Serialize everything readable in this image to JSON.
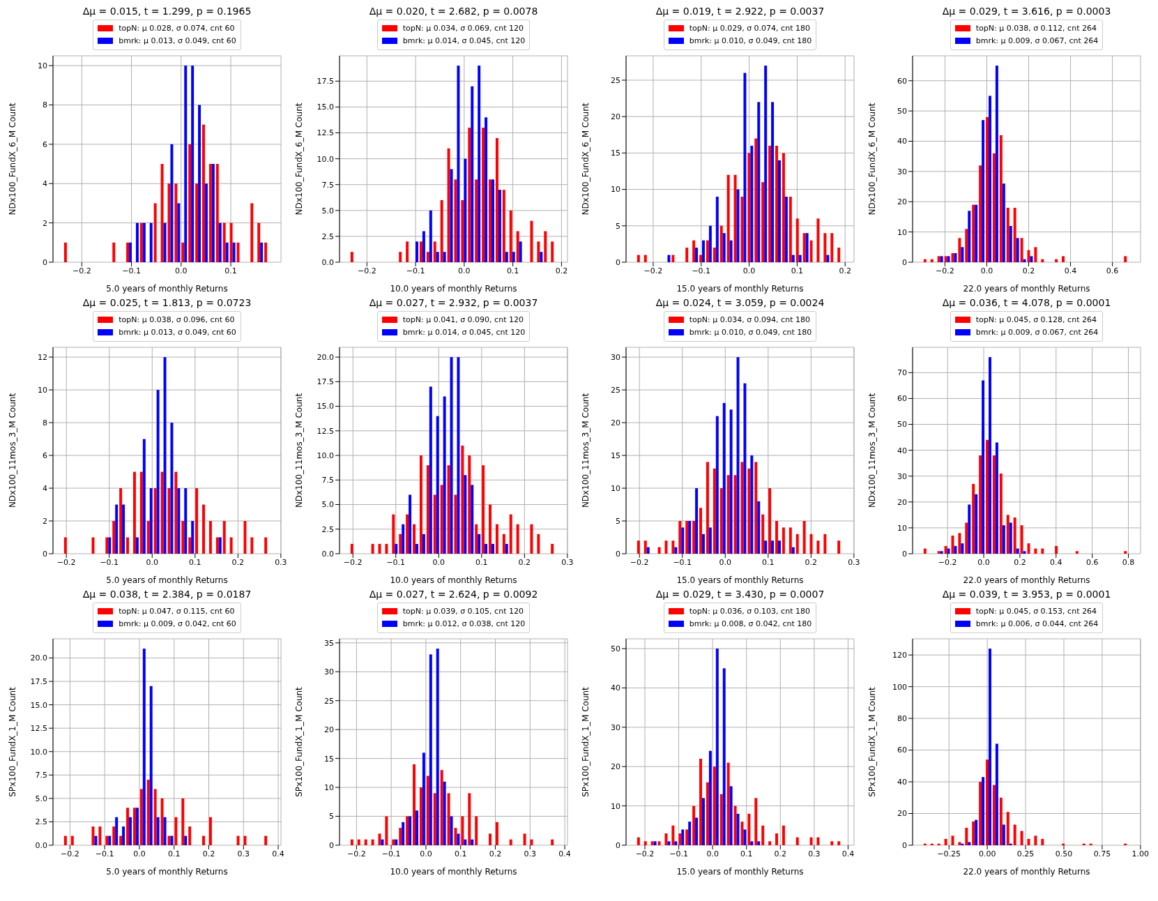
{
  "chart_data": [
    {
      "type": "histogram",
      "title": "Δμ = 0.015,  t = 1.299,  p = 0.1965",
      "xlabel": "5.0 years of monthly Returns",
      "ylabel": "NDx100_FundX_6_M Count",
      "bins": [
        -0.237,
        -0.2231,
        -0.2092,
        -0.1953,
        -0.1814,
        -0.1675,
        -0.1536,
        -0.1397,
        -0.1258,
        -0.1119,
        -0.098,
        -0.0841,
        -0.0702,
        -0.0563,
        -0.0424,
        -0.0285,
        -0.0146,
        -0.0007,
        0.0132,
        0.0271,
        0.041,
        0.0549,
        0.0688,
        0.0827,
        0.0966,
        0.1105,
        0.1244,
        0.1383,
        0.1522,
        0.1661,
        0.18
      ],
      "series": [
        {
          "name": "topN:  μ 0.028,  σ 0.074,  cnt 60",
          "color": "#ff0000",
          "values": [
            1,
            0,
            0,
            0,
            0,
            0,
            0,
            1,
            0,
            1,
            0,
            2,
            0,
            3,
            5,
            4,
            4,
            1,
            6,
            4,
            7,
            5,
            5,
            2,
            2,
            1,
            0,
            3,
            2,
            1
          ]
        },
        {
          "name": "bmrk:  μ 0.013,  σ 0.049,  cnt 60",
          "color": "#0000ff",
          "values": [
            0,
            0,
            0,
            0,
            0,
            0,
            0,
            0,
            0,
            1,
            2,
            2,
            2,
            0,
            2,
            6,
            3,
            10,
            10,
            8,
            4,
            5,
            2,
            1,
            1,
            0,
            0,
            0,
            1,
            0
          ]
        }
      ],
      "xlim": [
        -0.258,
        0.201
      ],
      "xticks": [
        -0.2,
        -0.1,
        {
          "value": 0,
          "label": "0.0"
        },
        0.1
      ],
      "ylim": [
        0,
        10.5
      ],
      "yticks": [
        0,
        2,
        4,
        6,
        8,
        10
      ],
      "grid": true,
      "legend": "top"
    },
    {
      "type": "histogram",
      "title": "Δμ = 0.020,  t = 2.682,  p = 0.0078",
      "xlabel": "10.0 years of monthly Returns",
      "ylabel": "NDx100_FundX_6_M Count",
      "bins": [
        -0.235,
        -0.2208,
        -0.2066,
        -0.1924,
        -0.1782,
        -0.164,
        -0.1498,
        -0.1356,
        -0.1214,
        -0.1072,
        -0.093,
        -0.0788,
        -0.0646,
        -0.0504,
        -0.0362,
        -0.022,
        -0.0078,
        0.0064,
        0.0206,
        0.0348,
        0.049,
        0.0632,
        0.0774,
        0.0916,
        0.1058,
        0.12,
        0.1342,
        0.1484,
        0.1626,
        0.1768,
        0.191
      ],
      "series": [
        {
          "name": "topN:  μ 0.034,  σ 0.069,  cnt 120",
          "color": "#ff0000",
          "values": [
            1,
            0,
            0,
            0,
            0,
            0,
            0,
            1,
            2,
            0,
            2,
            1,
            2,
            6,
            11,
            8,
            6,
            13,
            8,
            13,
            8,
            12,
            7,
            5,
            3,
            0,
            4,
            2,
            3,
            2
          ]
        },
        {
          "name": "bmrk:  μ 0.014,  σ 0.045,  cnt 120",
          "color": "#0000ff",
          "values": [
            0,
            0,
            0,
            0,
            0,
            0,
            0,
            0,
            0,
            2,
            3,
            5,
            1,
            1,
            9,
            19,
            10,
            17,
            19,
            14,
            8,
            7,
            1,
            1,
            2,
            0,
            0,
            1,
            0,
            0
          ]
        }
      ],
      "xlim": [
        -0.2563,
        0.2123
      ],
      "xticks": [
        -0.2,
        -0.1,
        {
          "value": 0,
          "label": "0.0"
        },
        0.1,
        0.2
      ],
      "ylim": [
        0,
        19.95
      ],
      "yticks": [
        {
          "value": 0,
          "label": "0.0"
        },
        {
          "value": 2.5,
          "label": "2.5"
        },
        {
          "value": 5,
          "label": "5.0"
        },
        {
          "value": 7.5,
          "label": "7.5"
        },
        {
          "value": 10,
          "label": "10.0"
        },
        {
          "value": 12.5,
          "label": "12.5"
        },
        {
          "value": 15,
          "label": "15.0"
        },
        {
          "value": 17.5,
          "label": "17.5"
        }
      ],
      "grid": true,
      "legend": "top"
    },
    {
      "type": "histogram",
      "title": "Δμ = 0.019,  t = 2.922,  p = 0.0037",
      "xlabel": "15.0 years of monthly Returns",
      "ylabel": "NDx100_FundX_6_M Count",
      "bins": [
        -0.235,
        -0.2206,
        -0.2062,
        -0.1918,
        -0.1774,
        -0.163,
        -0.1486,
        -0.1342,
        -0.1198,
        -0.1054,
        -0.091,
        -0.0766,
        -0.0622,
        -0.0478,
        -0.0334,
        -0.019,
        -0.0046,
        0.0098,
        0.0242,
        0.0386,
        0.053,
        0.0674,
        0.0818,
        0.0962,
        0.1106,
        0.125,
        0.1394,
        0.1538,
        0.1682,
        0.1826,
        0.197
      ],
      "series": [
        {
          "name": "topN:  μ 0.029,  σ 0.074,  cnt 180",
          "color": "#ff0000",
          "values": [
            1,
            1,
            0,
            0,
            0,
            1,
            0,
            2,
            3,
            1,
            3,
            2,
            5,
            12,
            12,
            9,
            15,
            17,
            11,
            16,
            16,
            15,
            9,
            6,
            4,
            3,
            6,
            4,
            4,
            2
          ]
        },
        {
          "name": "bmrk:  μ 0.010,  σ 0.049,  cnt 180",
          "color": "#0000ff",
          "values": [
            0,
            0,
            0,
            0,
            1,
            0,
            0,
            0,
            2,
            3,
            5,
            9,
            4,
            3,
            10,
            26,
            16,
            22,
            27,
            22,
            14,
            9,
            1,
            1,
            4,
            0,
            0,
            1,
            0,
            0
          ]
        }
      ],
      "xlim": [
        -0.2566,
        0.2186
      ],
      "xticks": [
        -0.2,
        -0.1,
        {
          "value": 0,
          "label": "0.0"
        },
        0.1,
        0.2
      ],
      "ylim": [
        0,
        28.35
      ],
      "yticks": [
        0,
        5,
        10,
        15,
        20,
        25
      ],
      "grid": true,
      "legend": "top"
    },
    {
      "type": "histogram",
      "title": "Δμ = 0.029,  t = 3.616,  p = 0.0003",
      "xlabel": "22.0 years of monthly Returns",
      "ylabel": "NDx100_FundX_6_M Count",
      "bins": [
        -0.305,
        -0.272,
        -0.239,
        -0.206,
        -0.173,
        -0.14,
        -0.107,
        -0.074,
        -0.041,
        -0.008,
        0.025,
        0.058,
        0.091,
        0.124,
        0.157,
        0.19,
        0.223,
        0.256,
        0.289,
        0.322,
        0.355,
        0.388,
        0.421,
        0.454,
        0.487,
        0.52,
        0.553,
        0.586,
        0.619,
        0.652,
        0.685
      ],
      "series": [
        {
          "name": "topN:  μ 0.038,  σ 0.112,  cnt 264",
          "color": "#ff0000",
          "values": [
            1,
            1,
            2,
            2,
            3,
            8,
            11,
            19,
            32,
            48,
            36,
            42,
            18,
            18,
            8,
            4,
            5,
            1,
            0,
            1,
            2,
            0,
            0,
            0,
            0,
            0,
            0,
            0,
            0,
            2
          ]
        },
        {
          "name": "bmrk:  μ 0.009,  σ 0.067,  cnt 264",
          "color": "#0000ff",
          "values": [
            0,
            0,
            2,
            2,
            3,
            5,
            17,
            19,
            47,
            55,
            65,
            26,
            12,
            8,
            1,
            2,
            0,
            0,
            0,
            0,
            0,
            0,
            0,
            0,
            0,
            0,
            0,
            0,
            0,
            0
          ]
        }
      ],
      "xlim": [
        -0.3545,
        0.7345
      ],
      "xticks": [
        -0.2,
        {
          "value": 0,
          "label": "0.0"
        },
        0.2,
        0.4,
        0.6
      ],
      "ylim": [
        0,
        68.25
      ],
      "yticks": [
        0,
        10,
        20,
        30,
        40,
        50,
        60
      ],
      "grid": true,
      "legend": "top"
    },
    {
      "type": "histogram",
      "title": "Δμ = 0.025,  t = 1.813,  p = 0.0723",
      "xlabel": "5.0 years of monthly Returns",
      "ylabel": "NDx100_11mos_3_M Count",
      "bins": [
        -0.207,
        -0.1909,
        -0.1748,
        -0.1587,
        -0.1426,
        -0.1265,
        -0.1104,
        -0.0943,
        -0.0782,
        -0.0621,
        -0.046,
        -0.0299,
        -0.0138,
        0.0023,
        0.0184,
        0.0345,
        0.0506,
        0.0667,
        0.0828,
        0.0989,
        0.115,
        0.1311,
        0.1472,
        0.1633,
        0.1794,
        0.1955,
        0.2116,
        0.2277,
        0.2438,
        0.2599,
        0.276
      ],
      "series": [
        {
          "name": "topN:  μ 0.038,  σ 0.096,  cnt 60",
          "color": "#ff0000",
          "values": [
            1,
            0,
            0,
            0,
            1,
            0,
            1,
            2,
            4,
            1,
            5,
            5,
            2,
            4,
            5,
            4,
            5,
            2,
            1,
            4,
            3,
            2,
            1,
            2,
            1,
            0,
            2,
            1,
            0,
            1
          ]
        },
        {
          "name": "bmrk:  μ 0.013,  σ 0.049,  cnt 60",
          "color": "#0000ff",
          "values": [
            0,
            0,
            0,
            0,
            0,
            0,
            1,
            3,
            3,
            0,
            1,
            7,
            4,
            10,
            12,
            8,
            4,
            4,
            2,
            0,
            0,
            0,
            1,
            0,
            0,
            0,
            0,
            0,
            0,
            0
          ]
        }
      ],
      "xlim": [
        -0.2312,
        0.3002
      ],
      "xticks": [
        -0.2,
        -0.1,
        {
          "value": 0,
          "label": "0.0"
        },
        0.1,
        0.2,
        0.3
      ],
      "ylim": [
        0,
        12.6
      ],
      "yticks": [
        0,
        2,
        4,
        6,
        8,
        10,
        12
      ],
      "grid": true,
      "legend": "top"
    },
    {
      "type": "histogram",
      "title": "Δμ = 0.027,  t = 2.932,  p = 0.0037",
      "xlabel": "10.0 years of monthly Returns",
      "ylabel": "NDx100_11mos_3_M Count",
      "bins": [
        -0.207,
        -0.1909,
        -0.1748,
        -0.1587,
        -0.1426,
        -0.1265,
        -0.1104,
        -0.0943,
        -0.0782,
        -0.0621,
        -0.046,
        -0.0299,
        -0.0138,
        0.0023,
        0.0184,
        0.0345,
        0.0506,
        0.0667,
        0.0828,
        0.0989,
        0.115,
        0.1311,
        0.1472,
        0.1633,
        0.1794,
        0.1955,
        0.2116,
        0.2277,
        0.2438,
        0.2599,
        0.276
      ],
      "series": [
        {
          "name": "topN:  μ 0.041,  σ 0.090,  cnt 120",
          "color": "#ff0000",
          "values": [
            1,
            0,
            0,
            1,
            1,
            1,
            4,
            2,
            4,
            3,
            10,
            9,
            6,
            7,
            9,
            6,
            11,
            10,
            3,
            9,
            5,
            3,
            2,
            4,
            3,
            0,
            3,
            2,
            0,
            1
          ]
        },
        {
          "name": "bmrk:  μ 0.014,  σ 0.045,  cnt 120",
          "color": "#0000ff",
          "values": [
            0,
            0,
            0,
            0,
            0,
            0,
            1,
            3,
            6,
            1,
            2,
            17,
            14,
            16,
            20,
            20,
            8,
            7,
            2,
            1,
            1,
            0,
            1,
            0,
            0,
            0,
            0,
            0,
            0,
            0
          ]
        }
      ],
      "xlim": [
        -0.2312,
        0.3002
      ],
      "xticks": [
        -0.2,
        -0.1,
        {
          "value": 0,
          "label": "0.0"
        },
        0.1,
        0.2,
        0.3
      ],
      "ylim": [
        0,
        21
      ],
      "yticks": [
        {
          "value": 0,
          "label": "0.0"
        },
        {
          "value": 2.5,
          "label": "2.5"
        },
        {
          "value": 5,
          "label": "5.0"
        },
        {
          "value": 7.5,
          "label": "7.5"
        },
        {
          "value": 10,
          "label": "10.0"
        },
        {
          "value": 12.5,
          "label": "12.5"
        },
        {
          "value": 15,
          "label": "15.0"
        },
        {
          "value": 17.5,
          "label": "17.5"
        },
        {
          "value": 20,
          "label": "20.0"
        }
      ],
      "grid": true,
      "legend": "top"
    },
    {
      "type": "histogram",
      "title": "Δμ = 0.024,  t = 3.059,  p = 0.0024",
      "xlabel": "15.0 years of monthly Returns",
      "ylabel": "NDx100_11mos_3_M Count",
      "bins": [
        -0.207,
        -0.1909,
        -0.1748,
        -0.1587,
        -0.1426,
        -0.1265,
        -0.1104,
        -0.0943,
        -0.0782,
        -0.0621,
        -0.046,
        -0.0299,
        -0.0138,
        0.0023,
        0.0184,
        0.0345,
        0.0506,
        0.0667,
        0.0828,
        0.0989,
        0.115,
        0.1311,
        0.1472,
        0.1633,
        0.1794,
        0.1955,
        0.2116,
        0.2277,
        0.2438,
        0.2599,
        0.276
      ],
      "series": [
        {
          "name": "topN:  μ 0.034,  σ 0.094,  cnt 180",
          "color": "#ff0000",
          "values": [
            2,
            2,
            0,
            1,
            2,
            2,
            5,
            5,
            5,
            7,
            14,
            13,
            10,
            12,
            12,
            14,
            13,
            14,
            6,
            10,
            5,
            4,
            4,
            3,
            5,
            3,
            2,
            3,
            0,
            2
          ]
        },
        {
          "name": "bmrk:  μ 0.010,  σ 0.049,  cnt 180",
          "color": "#0000ff",
          "values": [
            0,
            1,
            0,
            0,
            0,
            1,
            4,
            5,
            10,
            3,
            4,
            21,
            23,
            22,
            30,
            26,
            15,
            8,
            2,
            2,
            2,
            0,
            1,
            0,
            0,
            0,
            0,
            0,
            0,
            0
          ]
        }
      ],
      "xlim": [
        -0.2312,
        0.3002
      ],
      "xticks": [
        -0.2,
        -0.1,
        {
          "value": 0,
          "label": "0.0"
        },
        0.1,
        0.2,
        0.3
      ],
      "ylim": [
        0,
        31.5
      ],
      "yticks": [
        0,
        5,
        10,
        15,
        20,
        25,
        30
      ],
      "grid": true,
      "legend": "top"
    },
    {
      "type": "histogram",
      "title": "Δμ = 0.036,  t = 4.078,  p = 0.0001",
      "xlabel": "22.0 years of monthly Returns",
      "ylabel": "NDx100_11mos_3_M Count",
      "bins": [
        -0.336,
        -0.2978,
        -0.2596,
        -0.2214,
        -0.1832,
        -0.145,
        -0.1068,
        -0.0686,
        -0.0304,
        0.0078,
        0.046,
        0.0842,
        0.1224,
        0.1606,
        0.1988,
        0.237,
        0.2752,
        0.3134,
        0.3516,
        0.3898,
        0.428,
        0.4662,
        0.5044,
        0.5426,
        0.5808,
        0.619,
        0.6572,
        0.6954,
        0.7336,
        0.7718,
        0.81
      ],
      "series": [
        {
          "name": "topN:  μ 0.045,  σ 0.128,  cnt 264",
          "color": "#ff0000",
          "values": [
            2,
            0,
            1,
            3,
            7,
            8,
            12,
            27,
            38,
            44,
            38,
            31,
            15,
            14,
            11,
            4,
            2,
            2,
            0,
            3,
            0,
            0,
            1,
            0,
            0,
            0,
            0,
            0,
            0,
            1
          ]
        },
        {
          "name": "bmrk:  μ 0.009,  σ 0.067,  cnt 264",
          "color": "#0000ff",
          "values": [
            0,
            0,
            1,
            2,
            3,
            4,
            19,
            23,
            67,
            76,
            43,
            11,
            12,
            2,
            1,
            0,
            0,
            0,
            0,
            0,
            0,
            0,
            0,
            0,
            0,
            0,
            0,
            0,
            0,
            0
          ]
        }
      ],
      "xlim": [
        -0.3933,
        0.8673
      ],
      "xticks": [
        -0.2,
        {
          "value": 0,
          "label": "0.0"
        },
        0.2,
        0.4,
        0.6,
        0.8
      ],
      "ylim": [
        0,
        79.8
      ],
      "yticks": [
        0,
        10,
        20,
        30,
        40,
        50,
        60,
        70
      ],
      "grid": true,
      "legend": "top"
    },
    {
      "type": "histogram",
      "title": "Δμ = 0.038,  t = 2.384,  p = 0.0187",
      "xlabel": "5.0 years of monthly Returns",
      "ylabel": "SPx100_FundX_1_M Count",
      "bins": [
        -0.219,
        -0.1991,
        -0.1792,
        -0.1593,
        -0.1394,
        -0.1195,
        -0.0996,
        -0.0797,
        -0.0598,
        -0.0399,
        -0.02,
        -0.0001,
        0.0198,
        0.0397,
        0.0596,
        0.0795,
        0.0994,
        0.1193,
        0.1392,
        0.1591,
        0.179,
        0.1989,
        0.2188,
        0.2387,
        0.2586,
        0.2785,
        0.2984,
        0.3183,
        0.3382,
        0.3581,
        0.378
      ],
      "series": [
        {
          "name": "topN:  μ 0.047,  σ 0.115,  cnt 60",
          "color": "#ff0000",
          "values": [
            1,
            1,
            0,
            0,
            2,
            2,
            1,
            2,
            1,
            4,
            4,
            6,
            7,
            6,
            5,
            1,
            3,
            5,
            2,
            0,
            1,
            3,
            0,
            0,
            0,
            1,
            1,
            0,
            0,
            1
          ]
        },
        {
          "name": "bmrk:  μ 0.009,  σ 0.042,  cnt 60",
          "color": "#0000ff",
          "values": [
            0,
            0,
            0,
            0,
            1,
            0,
            1,
            3,
            2,
            3,
            4,
            21,
            17,
            3,
            3,
            1,
            0,
            1,
            0,
            0,
            0,
            0,
            0,
            0,
            0,
            0,
            0,
            0,
            0,
            0
          ]
        }
      ],
      "xlim": [
        -0.2489,
        0.4079
      ],
      "xticks": [
        -0.2,
        -0.1,
        {
          "value": 0,
          "label": "0.0"
        },
        0.1,
        0.2,
        0.3,
        0.4
      ],
      "ylim": [
        0,
        22.05
      ],
      "yticks": [
        {
          "value": 0,
          "label": "0.0"
        },
        {
          "value": 2.5,
          "label": "2.5"
        },
        {
          "value": 5,
          "label": "5.0"
        },
        {
          "value": 7.5,
          "label": "7.5"
        },
        {
          "value": 10,
          "label": "10.0"
        },
        {
          "value": 12.5,
          "label": "12.5"
        },
        {
          "value": 15,
          "label": "15.0"
        },
        {
          "value": 17.5,
          "label": "17.5"
        },
        {
          "value": 20,
          "label": "20.0"
        }
      ],
      "grid": true,
      "legend": "top"
    },
    {
      "type": "histogram",
      "title": "Δμ = 0.027,  t = 2.624,  p = 0.0092",
      "xlabel": "10.0 years of monthly Returns",
      "ylabel": "SPx100_FundX_1_M Count",
      "bins": [
        -0.219,
        -0.1991,
        -0.1792,
        -0.1593,
        -0.1394,
        -0.1195,
        -0.0996,
        -0.0797,
        -0.0598,
        -0.0399,
        -0.02,
        -0.0001,
        0.0198,
        0.0397,
        0.0596,
        0.0795,
        0.0994,
        0.1193,
        0.1392,
        0.1591,
        0.179,
        0.1989,
        0.2188,
        0.2387,
        0.2586,
        0.2785,
        0.2984,
        0.3183,
        0.3382,
        0.3581,
        0.378
      ],
      "series": [
        {
          "name": "topN:  μ 0.039,  σ 0.105,  cnt 120",
          "color": "#ff0000",
          "values": [
            1,
            1,
            1,
            1,
            2,
            5,
            1,
            3,
            5,
            14,
            10,
            12,
            9,
            13,
            9,
            3,
            5,
            9,
            5,
            0,
            2,
            4,
            0,
            1,
            0,
            2,
            1,
            0,
            0,
            1
          ]
        },
        {
          "name": "bmrk:  μ 0.012,  σ 0.038,  cnt 120",
          "color": "#0000ff",
          "values": [
            0,
            0,
            0,
            0,
            1,
            0,
            1,
            4,
            5,
            6,
            16,
            33,
            34,
            11,
            5,
            2,
            1,
            1,
            0,
            0,
            0,
            0,
            0,
            0,
            0,
            0,
            0,
            0,
            0,
            0
          ]
        }
      ],
      "xlim": [
        -0.2489,
        0.4079
      ],
      "xticks": [
        -0.2,
        -0.1,
        {
          "value": 0,
          "label": "0.0"
        },
        0.1,
        0.2,
        0.3,
        0.4
      ],
      "ylim": [
        0,
        35.7
      ],
      "yticks": [
        0,
        5,
        10,
        15,
        20,
        25,
        30,
        35
      ],
      "grid": true,
      "legend": "top"
    },
    {
      "type": "histogram",
      "title": "Δμ = 0.029,  t = 3.430,  p = 0.0007",
      "xlabel": "15.0 years of monthly Returns",
      "ylabel": "SPx100_FundX_1_M Count",
      "bins": [
        -0.225,
        -0.2046,
        -0.1842,
        -0.1638,
        -0.1434,
        -0.123,
        -0.1026,
        -0.0822,
        -0.0618,
        -0.0414,
        -0.021,
        -0.0006,
        0.0198,
        0.0402,
        0.0606,
        0.081,
        0.1014,
        0.1218,
        0.1422,
        0.1626,
        0.183,
        0.2034,
        0.2238,
        0.2442,
        0.2646,
        0.285,
        0.3054,
        0.3258,
        0.3462,
        0.3666,
        0.387
      ],
      "series": [
        {
          "name": "topN:  μ 0.036,  σ 0.103,  cnt 180",
          "color": "#ff0000",
          "values": [
            2,
            1,
            1,
            1,
            3,
            5,
            3,
            4,
            10,
            22,
            16,
            20,
            13,
            21,
            10,
            6,
            8,
            12,
            5,
            1,
            3,
            5,
            0,
            2,
            0,
            2,
            2,
            0,
            1,
            1
          ]
        },
        {
          "name": "bmrk:  μ 0.008,  σ 0.042,  cnt 180",
          "color": "#0000ff",
          "values": [
            0,
            0,
            1,
            0,
            1,
            1,
            4,
            6,
            7,
            12,
            24,
            50,
            45,
            15,
            8,
            4,
            1,
            1,
            0,
            0,
            0,
            0,
            0,
            0,
            0,
            0,
            0,
            0,
            0,
            0
          ]
        }
      ],
      "xlim": [
        -0.2556,
        0.4176
      ],
      "xticks": [
        -0.2,
        -0.1,
        {
          "value": 0,
          "label": "0.0"
        },
        0.1,
        0.2,
        0.3,
        0.4
      ],
      "ylim": [
        0,
        52.5
      ],
      "yticks": [
        0,
        10,
        20,
        30,
        40,
        50
      ],
      "grid": true,
      "legend": "top"
    },
    {
      "type": "histogram",
      "title": "Δμ = 0.039,  t = 3.953,  p = 0.0001",
      "xlabel": "22.0 years of monthly Returns",
      "ylabel": "SPx100_FundX_1_M Count",
      "bins": [
        -0.42,
        -0.3749,
        -0.3298,
        -0.2847,
        -0.2396,
        -0.1945,
        -0.1494,
        -0.1043,
        -0.0592,
        -0.0141,
        0.031,
        0.0761,
        0.1212,
        0.1663,
        0.2114,
        0.2565,
        0.3016,
        0.3467,
        0.3918,
        0.4369,
        0.482,
        0.5271,
        0.5722,
        0.6173,
        0.6624,
        0.7075,
        0.7526,
        0.7977,
        0.8428,
        0.8879,
        0.933
      ],
      "series": [
        {
          "name": "topN:  μ 0.045,  σ 0.153,  cnt 264",
          "color": "#ff0000",
          "values": [
            1,
            1,
            1,
            4,
            6,
            2,
            11,
            15,
            40,
            54,
            38,
            30,
            21,
            13,
            9,
            4,
            6,
            4,
            0,
            0,
            1,
            0,
            0,
            1,
            1,
            0,
            0,
            0,
            0,
            1
          ]
        },
        {
          "name": "bmrk:  μ 0.006,  σ 0.044,  cnt 264",
          "color": "#0000ff",
          "values": [
            0,
            0,
            0,
            0,
            0,
            1,
            2,
            16,
            43,
            124,
            64,
            13,
            1,
            0,
            0,
            0,
            0,
            0,
            0,
            0,
            0,
            0,
            0,
            0,
            0,
            0,
            0,
            0,
            0,
            0
          ]
        }
      ],
      "xlim": [
        -0.4877,
        1.0007
      ],
      "xticks": [
        {
          "value": -0.25,
          "label": "−0.25"
        },
        {
          "value": 0,
          "label": "0.00"
        },
        {
          "value": 0.25,
          "label": "0.25"
        },
        {
          "value": 0.5,
          "label": "0.50"
        },
        {
          "value": 0.75,
          "label": "0.75"
        },
        {
          "value": 1,
          "label": "1.00"
        }
      ],
      "ylim": [
        0,
        130.2
      ],
      "yticks": [
        0,
        20,
        40,
        60,
        80,
        100,
        120
      ],
      "grid": true,
      "legend": "top"
    }
  ]
}
